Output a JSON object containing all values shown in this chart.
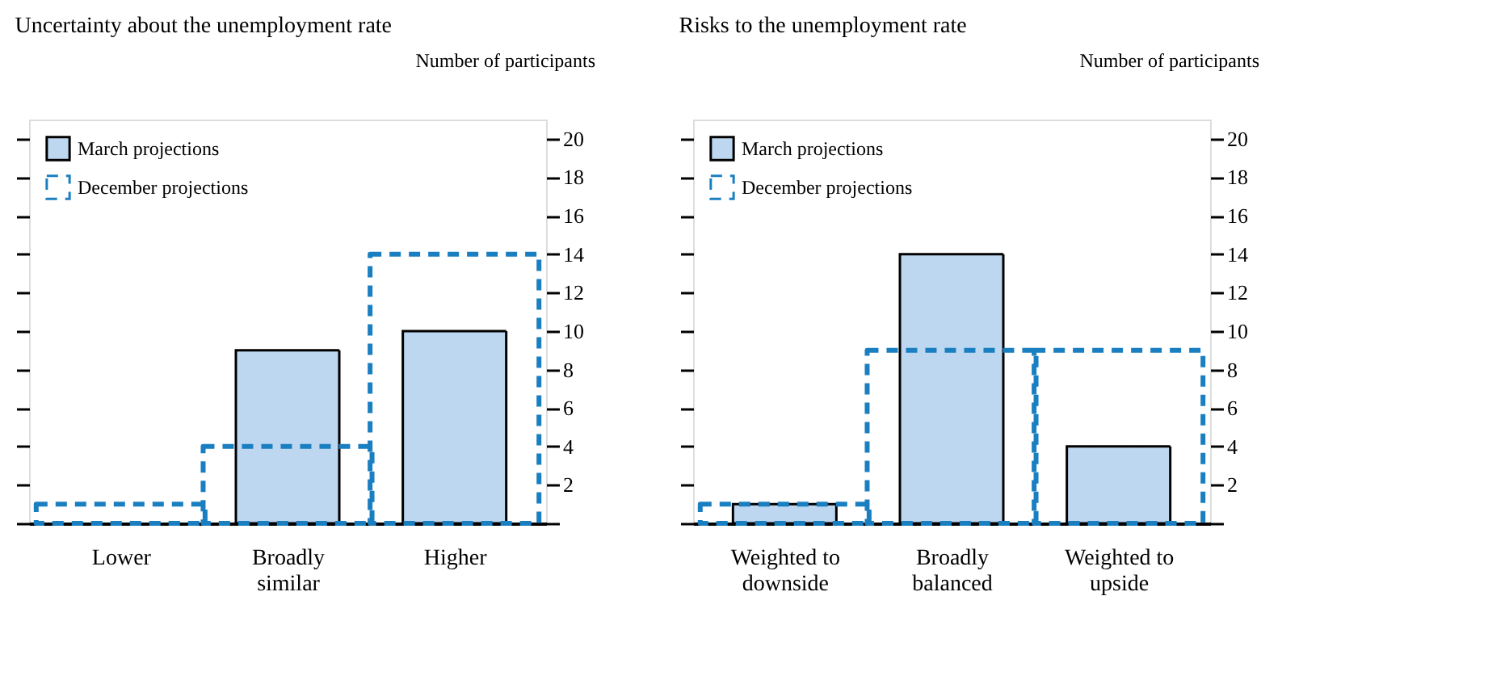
{
  "chart_data": [
    {
      "type": "bar",
      "title": "Uncertainty about the unemployment rate",
      "ylabel": "Number of participants",
      "categories": [
        "Lower",
        "Broadly\nsimilar",
        "Higher"
      ],
      "series": [
        {
          "name": "March projections",
          "color": "#bdd7f0",
          "values": [
            0,
            9,
            10
          ]
        },
        {
          "name": "December projections",
          "color": "#1a7fc1",
          "line_style": "dashed",
          "values": [
            1,
            4,
            14
          ]
        }
      ],
      "ylim": [
        0,
        21
      ],
      "yticks": [
        {
          "value": 0,
          "label": null
        },
        2,
        4,
        6,
        8,
        10,
        12,
        14,
        16,
        18,
        20
      ],
      "legend": "top left",
      "grid": false
    },
    {
      "type": "bar",
      "title": "Risks to the unemployment rate",
      "ylabel": "Number of participants",
      "categories": [
        "Weighted to\ndownside",
        "Broadly\nbalanced",
        "Weighted to\nupside"
      ],
      "series": [
        {
          "name": "March projections",
          "color": "#bdd7f0",
          "values": [
            1,
            14,
            4
          ]
        },
        {
          "name": "December projections",
          "color": "#1a7fc1",
          "line_style": "dashed",
          "values": [
            1,
            9,
            9
          ]
        }
      ],
      "ylim": [
        0,
        21
      ],
      "yticks": [
        {
          "value": 0,
          "label": null
        },
        2,
        4,
        6,
        8,
        10,
        12,
        14,
        16,
        18,
        20
      ],
      "legend": "top left",
      "grid": false
    }
  ]
}
